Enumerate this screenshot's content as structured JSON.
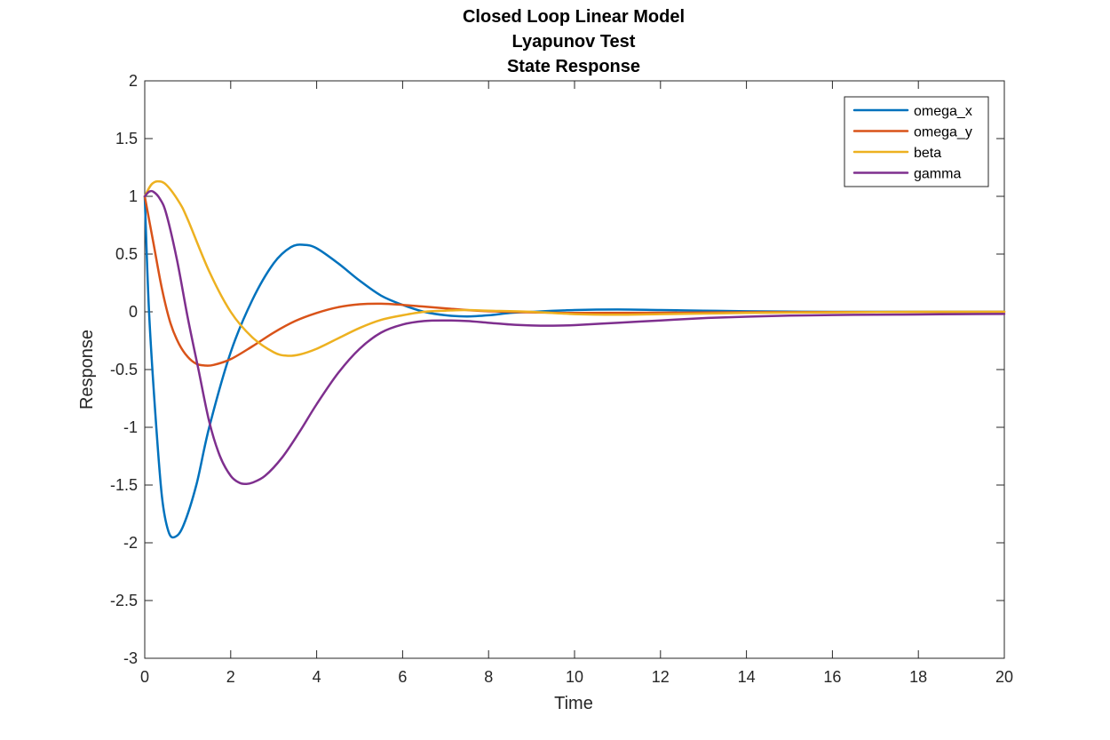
{
  "chart_data": {
    "type": "line",
    "title": [
      "Closed Loop Linear Model",
      "Lyapunov Test",
      "State Response"
    ],
    "xlabel": "Time",
    "ylabel": "Response",
    "xlim": [
      0,
      20
    ],
    "ylim": [
      -3,
      2
    ],
    "xticks": [
      0,
      2,
      4,
      6,
      8,
      10,
      12,
      14,
      16,
      18,
      20
    ],
    "xtick_labels": [
      "0",
      "2",
      "4",
      "6",
      "8",
      "10",
      "12",
      "14",
      "16",
      "18",
      "20"
    ],
    "yticks": [
      2,
      1.5,
      1,
      0.5,
      0,
      -0.5,
      -1,
      -1.5,
      -2,
      -2.5,
      -3
    ],
    "ytick_labels": [
      "2",
      "1.5",
      "1",
      "0.5",
      "0",
      "-0.5",
      "-1",
      "-1.5",
      "-2",
      "-2.5",
      "-3"
    ],
    "grid": false,
    "legend_position": "top-right",
    "series": [
      {
        "name": "omega_x",
        "color": "#0072BD",
        "points": [
          [
            0,
            1.0
          ],
          [
            0.1,
            0.0
          ],
          [
            0.25,
            -0.9
          ],
          [
            0.4,
            -1.6
          ],
          [
            0.55,
            -1.9
          ],
          [
            0.7,
            -1.95
          ],
          [
            0.9,
            -1.85
          ],
          [
            1.2,
            -1.5
          ],
          [
            1.5,
            -1.0
          ],
          [
            2.0,
            -0.35
          ],
          [
            2.5,
            0.1
          ],
          [
            3.0,
            0.42
          ],
          [
            3.4,
            0.56
          ],
          [
            3.7,
            0.58
          ],
          [
            4.0,
            0.55
          ],
          [
            4.5,
            0.42
          ],
          [
            5.0,
            0.27
          ],
          [
            5.5,
            0.14
          ],
          [
            6.0,
            0.06
          ],
          [
            6.5,
            0.0
          ],
          [
            7.0,
            -0.03
          ],
          [
            7.5,
            -0.04
          ],
          [
            8.0,
            -0.03
          ],
          [
            8.5,
            -0.01
          ],
          [
            9.0,
            0.0
          ],
          [
            10.0,
            0.015
          ],
          [
            11.0,
            0.02
          ],
          [
            12.0,
            0.015
          ],
          [
            13.0,
            0.01
          ],
          [
            14.0,
            0.005
          ],
          [
            16.0,
            0.0
          ],
          [
            18.0,
            0.0
          ],
          [
            20.0,
            0.0
          ]
        ]
      },
      {
        "name": "omega_y",
        "color": "#D95319",
        "points": [
          [
            0,
            1.0
          ],
          [
            0.2,
            0.6
          ],
          [
            0.4,
            0.2
          ],
          [
            0.6,
            -0.1
          ],
          [
            0.8,
            -0.28
          ],
          [
            1.0,
            -0.39
          ],
          [
            1.2,
            -0.45
          ],
          [
            1.4,
            -0.465
          ],
          [
            1.6,
            -0.46
          ],
          [
            2.0,
            -0.41
          ],
          [
            2.5,
            -0.3
          ],
          [
            3.0,
            -0.18
          ],
          [
            3.5,
            -0.08
          ],
          [
            4.0,
            -0.01
          ],
          [
            4.5,
            0.04
          ],
          [
            5.0,
            0.065
          ],
          [
            5.5,
            0.07
          ],
          [
            6.0,
            0.06
          ],
          [
            6.5,
            0.045
          ],
          [
            7.0,
            0.03
          ],
          [
            7.5,
            0.015
          ],
          [
            8.0,
            0.005
          ],
          [
            9.0,
            -0.005
          ],
          [
            10.0,
            -0.01
          ],
          [
            12.0,
            -0.008
          ],
          [
            14.0,
            -0.004
          ],
          [
            16.0,
            -0.002
          ],
          [
            20.0,
            0.0
          ]
        ]
      },
      {
        "name": "beta",
        "color": "#EDB120",
        "points": [
          [
            0,
            1.0
          ],
          [
            0.15,
            1.1
          ],
          [
            0.3,
            1.13
          ],
          [
            0.5,
            1.1
          ],
          [
            0.8,
            0.95
          ],
          [
            1.0,
            0.8
          ],
          [
            1.5,
            0.35
          ],
          [
            2.0,
            0.0
          ],
          [
            2.5,
            -0.22
          ],
          [
            3.0,
            -0.35
          ],
          [
            3.3,
            -0.38
          ],
          [
            3.6,
            -0.37
          ],
          [
            4.0,
            -0.32
          ],
          [
            4.5,
            -0.23
          ],
          [
            5.0,
            -0.14
          ],
          [
            5.5,
            -0.07
          ],
          [
            6.0,
            -0.03
          ],
          [
            6.5,
            0.0
          ],
          [
            7.0,
            0.01
          ],
          [
            7.5,
            0.015
          ],
          [
            8.0,
            0.01
          ],
          [
            9.0,
            0.0
          ],
          [
            10.0,
            -0.02
          ],
          [
            11.0,
            -0.025
          ],
          [
            12.0,
            -0.02
          ],
          [
            14.0,
            -0.01
          ],
          [
            16.0,
            -0.005
          ],
          [
            18.0,
            0.0
          ],
          [
            20.0,
            0.0
          ]
        ]
      },
      {
        "name": "gamma",
        "color": "#7E2F8E",
        "points": [
          [
            0,
            1.0
          ],
          [
            0.1,
            1.04
          ],
          [
            0.2,
            1.04
          ],
          [
            0.35,
            0.98
          ],
          [
            0.5,
            0.85
          ],
          [
            0.75,
            0.45
          ],
          [
            1.0,
            -0.05
          ],
          [
            1.25,
            -0.5
          ],
          [
            1.5,
            -0.95
          ],
          [
            1.75,
            -1.25
          ],
          [
            2.0,
            -1.42
          ],
          [
            2.2,
            -1.48
          ],
          [
            2.35,
            -1.49
          ],
          [
            2.5,
            -1.48
          ],
          [
            2.8,
            -1.42
          ],
          [
            3.2,
            -1.26
          ],
          [
            3.6,
            -1.04
          ],
          [
            4.0,
            -0.8
          ],
          [
            4.5,
            -0.53
          ],
          [
            5.0,
            -0.32
          ],
          [
            5.5,
            -0.18
          ],
          [
            6.0,
            -0.11
          ],
          [
            6.5,
            -0.08
          ],
          [
            7.0,
            -0.075
          ],
          [
            7.5,
            -0.08
          ],
          [
            8.0,
            -0.095
          ],
          [
            8.5,
            -0.11
          ],
          [
            9.0,
            -0.118
          ],
          [
            9.5,
            -0.12
          ],
          [
            10.0,
            -0.115
          ],
          [
            11.0,
            -0.095
          ],
          [
            12.0,
            -0.075
          ],
          [
            13.0,
            -0.055
          ],
          [
            14.0,
            -0.042
          ],
          [
            15.0,
            -0.033
          ],
          [
            16.0,
            -0.028
          ],
          [
            17.0,
            -0.025
          ],
          [
            18.0,
            -0.023
          ],
          [
            19.0,
            -0.02
          ],
          [
            20.0,
            -0.018
          ]
        ]
      }
    ]
  }
}
